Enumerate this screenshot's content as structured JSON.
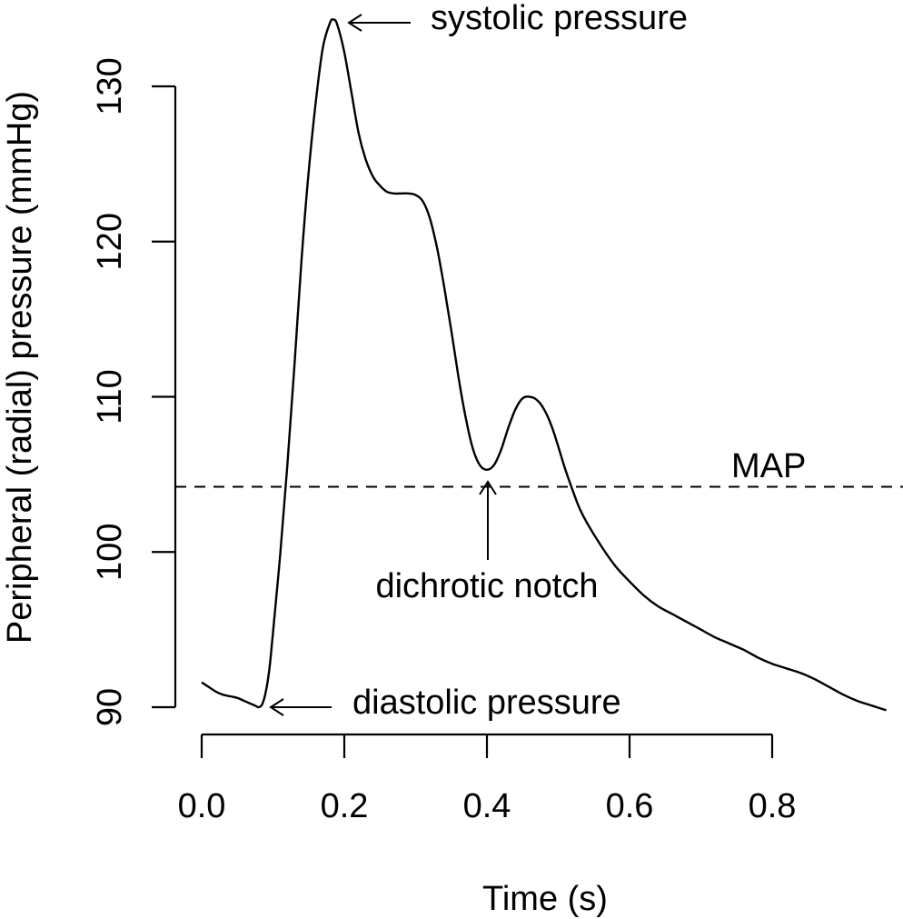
{
  "chart_data": {
    "type": "line",
    "title": "",
    "xlabel": "Time (s)",
    "ylabel": "Peripheral (radial) pressure (mmHg)",
    "xlim": [
      -0.03,
      0.99
    ],
    "ylim": [
      88.3,
      134.7
    ],
    "x_ticks": [
      0.0,
      0.2,
      0.4,
      0.6,
      0.8
    ],
    "x_tick_labels": [
      "0.0",
      "0.2",
      "0.4",
      "0.6",
      "0.8"
    ],
    "y_ticks": [
      90,
      100,
      110,
      120,
      130
    ],
    "y_tick_labels": [
      "90",
      "100",
      "110",
      "120",
      "130"
    ],
    "grid": false,
    "series": [
      {
        "x": [
          0.0,
          0.01,
          0.02,
          0.03,
          0.04,
          0.05,
          0.06,
          0.07,
          0.075,
          0.08,
          0.085,
          0.09,
          0.095,
          0.1,
          0.11,
          0.12,
          0.13,
          0.14,
          0.15,
          0.16,
          0.17,
          0.18,
          0.185,
          0.19,
          0.2,
          0.21,
          0.22,
          0.23,
          0.24,
          0.25,
          0.26,
          0.27,
          0.28,
          0.29,
          0.3,
          0.31,
          0.32,
          0.33,
          0.34,
          0.35,
          0.36,
          0.37,
          0.38,
          0.39,
          0.4,
          0.41,
          0.42,
          0.43,
          0.44,
          0.45,
          0.46,
          0.47,
          0.48,
          0.49,
          0.5,
          0.51,
          0.52,
          0.53,
          0.54,
          0.56,
          0.58,
          0.6,
          0.62,
          0.64,
          0.66,
          0.68,
          0.7,
          0.72,
          0.74,
          0.76,
          0.78,
          0.8,
          0.82,
          0.84,
          0.86,
          0.88,
          0.9,
          0.92,
          0.94,
          0.96
        ],
        "values": [
          91.6,
          91.3,
          91.0,
          90.8,
          90.7,
          90.6,
          90.4,
          90.2,
          90.1,
          90.0,
          90.2,
          91.0,
          92.5,
          94.8,
          99.8,
          105.5,
          112.0,
          118.8,
          124.5,
          129.0,
          132.5,
          134.1,
          134.3,
          134.0,
          132.2,
          129.6,
          127.0,
          125.3,
          124.2,
          123.6,
          123.2,
          123.1,
          123.1,
          123.1,
          123.0,
          122.6,
          121.5,
          119.6,
          117.1,
          114.3,
          111.3,
          108.7,
          106.7,
          105.6,
          105.3,
          105.6,
          106.6,
          108.0,
          109.2,
          109.9,
          110.0,
          109.8,
          109.2,
          108.2,
          106.8,
          105.3,
          104.0,
          102.8,
          101.9,
          100.4,
          99.1,
          98.1,
          97.2,
          96.5,
          96.0,
          95.5,
          95.0,
          94.5,
          94.1,
          93.7,
          93.2,
          92.8,
          92.5,
          92.2,
          91.8,
          91.3,
          90.8,
          90.4,
          90.1,
          89.8
        ]
      }
    ],
    "reference_lines": [
      {
        "label": "MAP",
        "y": 104.2,
        "style": "dashed"
      }
    ],
    "annotations": [
      {
        "text": "systolic pressure",
        "point": [
          0.185,
          134.3
        ]
      },
      {
        "text": "diastolic pressure",
        "point": [
          0.08,
          90.0
        ]
      },
      {
        "text": "dichrotic notch",
        "point": [
          0.4,
          105.3
        ]
      }
    ]
  }
}
